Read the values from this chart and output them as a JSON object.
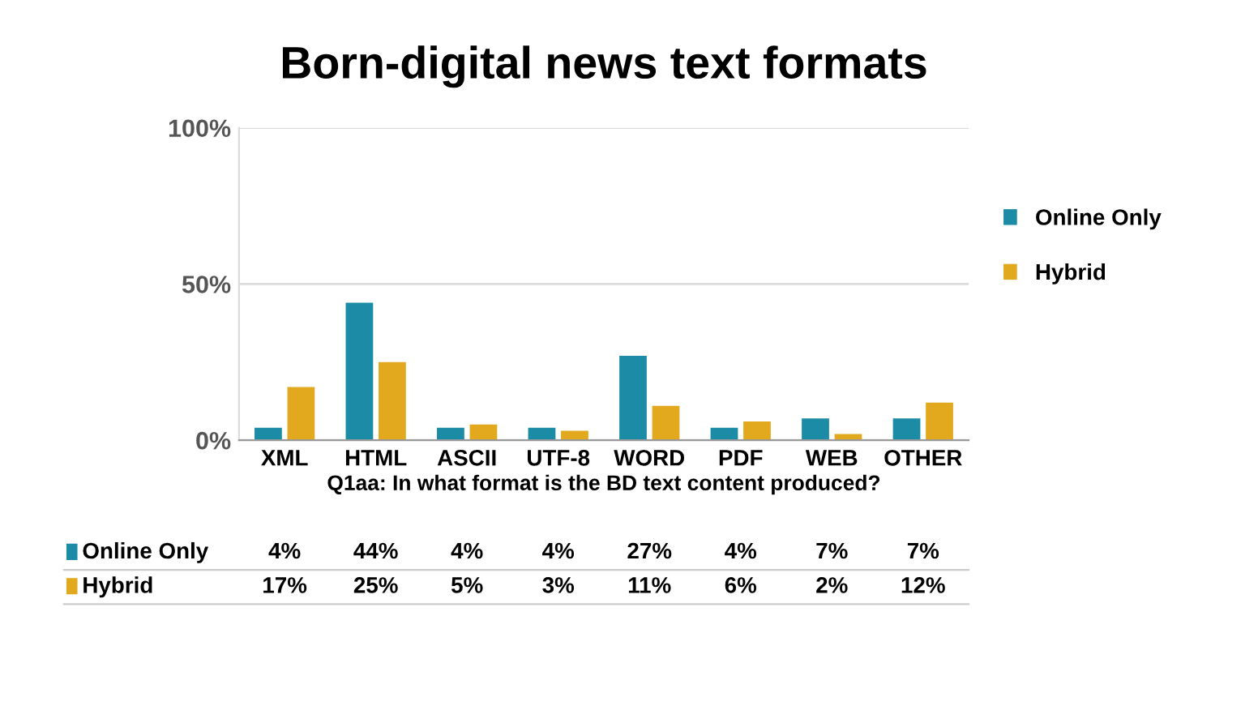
{
  "chart_data": {
    "type": "bar",
    "title": "Born-digital news text formats",
    "xlabel": "Q1aa: In what format is the BD text content produced?",
    "categories": [
      "XML",
      "HTML",
      "ASCII",
      "UTF-8",
      "WORD",
      "PDF",
      "WEB",
      "OTHER"
    ],
    "series": [
      {
        "name": "Online Only",
        "color": "#1b8ba6",
        "values": [
          4,
          44,
          4,
          4,
          27,
          4,
          7,
          7
        ],
        "value_labels": [
          "4%",
          "44%",
          "4%",
          "4%",
          "27%",
          "4%",
          "7%",
          "7%"
        ]
      },
      {
        "name": "Hybrid",
        "color": "#e2a91e",
        "values": [
          17,
          25,
          5,
          3,
          11,
          6,
          2,
          12
        ],
        "value_labels": [
          "17%",
          "25%",
          "5%",
          "3%",
          "11%",
          "6%",
          "2%",
          "12%"
        ]
      }
    ],
    "ylim": [
      0,
      100
    ],
    "yticks": [
      {
        "value": 0,
        "label": "0%"
      },
      {
        "value": 50,
        "label": "50%"
      },
      {
        "value": 100,
        "label": "100%"
      }
    ],
    "grid": "y",
    "legend": "right"
  }
}
